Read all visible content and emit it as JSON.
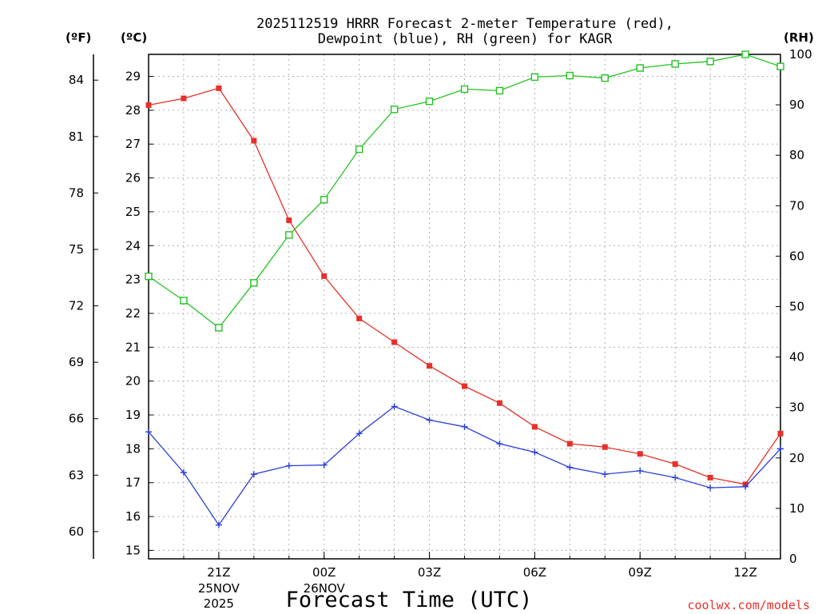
{
  "chart_data": {
    "type": "line",
    "title_line1": "2025112519 HRRR Forecast 2-meter Temperature (red),",
    "title_line2": "Dewpoint (blue), RH (green) for KAGR",
    "xlabel": "Forecast Time (UTC)",
    "unit_f": "(ºF)",
    "unit_c": "(ºC)",
    "unit_rh": "(RH)",
    "credit": "coolwx.com/models",
    "x_hours": [
      19,
      20,
      21,
      22,
      23,
      24,
      25,
      26,
      27,
      28,
      29,
      30,
      31,
      32,
      33,
      34,
      35,
      36,
      37
    ],
    "x_ticks": [
      {
        "hour": 21,
        "label": "21Z"
      },
      {
        "hour": 24,
        "label": "00Z"
      },
      {
        "hour": 27,
        "label": "03Z"
      },
      {
        "hour": 30,
        "label": "06Z"
      },
      {
        "hour": 33,
        "label": "09Z"
      },
      {
        "hour": 36,
        "label": "12Z"
      }
    ],
    "date_labels": [
      {
        "hour": 21,
        "line1": "25NOV",
        "line2": "2025"
      },
      {
        "hour": 24,
        "line1": "26NOV",
        "line2": ""
      }
    ],
    "celsius_ticks": [
      15,
      16,
      17,
      18,
      19,
      20,
      21,
      22,
      23,
      24,
      25,
      26,
      27,
      28,
      29
    ],
    "fahrenheit_ticks": [
      60,
      63,
      66,
      69,
      72,
      75,
      78,
      81,
      84
    ],
    "rh_ticks": [
      0,
      10,
      20,
      30,
      40,
      50,
      60,
      70,
      80,
      90,
      100
    ],
    "ylim_c": [
      14.75,
      29.65
    ],
    "ylim_rh": [
      0,
      100
    ],
    "series": [
      {
        "name": "Temperature",
        "unit": "C",
        "color": "#e8302a",
        "marker": "filled-square",
        "values": [
          28.15,
          28.35,
          28.65,
          27.1,
          24.75,
          23.1,
          21.85,
          21.15,
          20.45,
          19.85,
          19.35,
          18.65,
          18.15,
          18.05,
          17.85,
          17.55,
          17.15,
          16.95,
          18.45
        ]
      },
      {
        "name": "Dewpoint",
        "unit": "C",
        "color": "#2b3fd8",
        "marker": "plus",
        "values": [
          18.5,
          17.3,
          15.75,
          17.25,
          17.5,
          17.52,
          18.45,
          19.25,
          18.85,
          18.65,
          18.15,
          17.9,
          17.45,
          17.25,
          17.35,
          17.15,
          16.85,
          16.88,
          18.0
        ]
      },
      {
        "name": "RH",
        "unit": "%",
        "color": "#22c322",
        "marker": "open-square",
        "values": [
          56,
          51.2,
          45.8,
          54.7,
          64.2,
          71.2,
          81.2,
          89.1,
          90.7,
          93.1,
          92.8,
          95.5,
          95.8,
          95.3,
          97.3,
          98.1,
          98.6,
          100,
          97.6
        ]
      }
    ]
  }
}
